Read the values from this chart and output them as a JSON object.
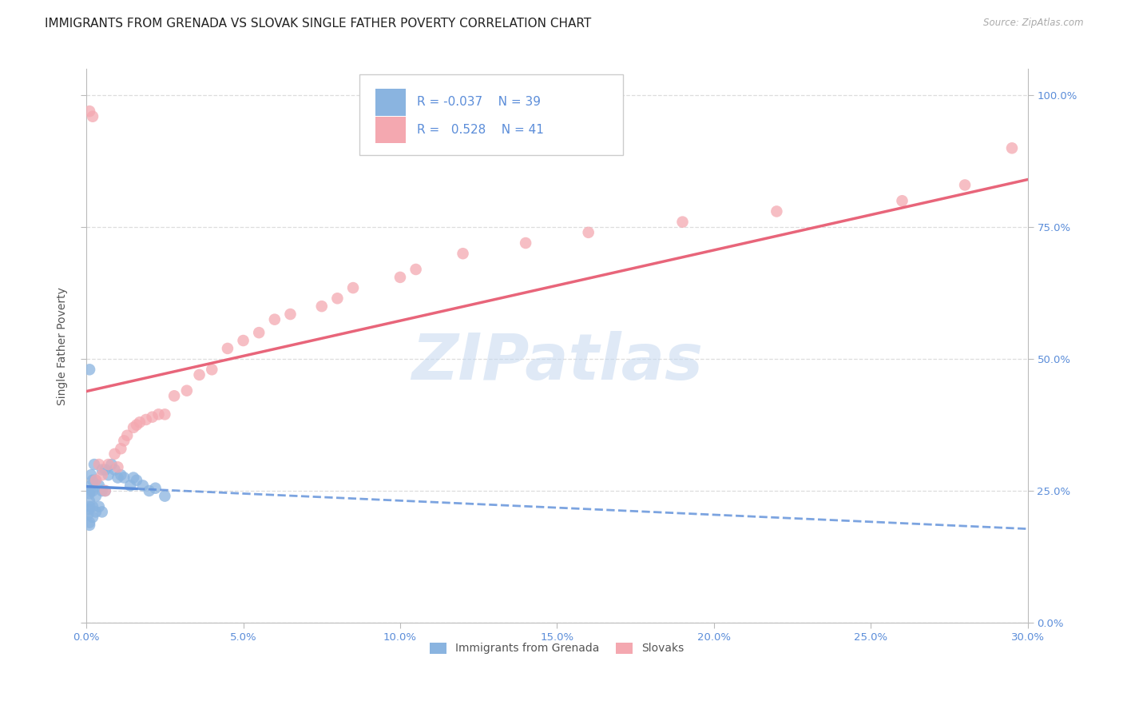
{
  "title": "IMMIGRANTS FROM GRENADA VS SLOVAK SINGLE FATHER POVERTY CORRELATION CHART",
  "source": "Source: ZipAtlas.com",
  "ylabel_label": "Single Father Poverty",
  "x_min": 0.0,
  "x_max": 0.3,
  "y_min": 0.0,
  "y_max": 1.05,
  "grenada_color": "#8ab4e0",
  "slovak_color": "#f4a8b0",
  "grenada_line_color": "#5b8dd9",
  "slovak_line_color": "#e8657a",
  "legend_grenada_label": "Immigrants from Grenada",
  "legend_slovak_label": "Slovaks",
  "R_grenada": -0.037,
  "N_grenada": 39,
  "R_slovak": 0.528,
  "N_slovak": 41,
  "watermark": "ZIPatlas",
  "grenada_x": [
    0.0005,
    0.0008,
    0.001,
    0.001,
    0.001,
    0.0012,
    0.0015,
    0.0015,
    0.002,
    0.002,
    0.002,
    0.002,
    0.0025,
    0.003,
    0.003,
    0.003,
    0.004,
    0.004,
    0.005,
    0.005,
    0.005,
    0.006,
    0.006,
    0.007,
    0.008,
    0.009,
    0.01,
    0.011,
    0.012,
    0.014,
    0.015,
    0.016,
    0.018,
    0.02,
    0.022,
    0.025,
    0.001,
    0.001,
    0.001
  ],
  "grenada_y": [
    0.205,
    0.215,
    0.22,
    0.23,
    0.245,
    0.25,
    0.26,
    0.28,
    0.2,
    0.22,
    0.25,
    0.27,
    0.3,
    0.21,
    0.24,
    0.27,
    0.22,
    0.26,
    0.21,
    0.25,
    0.29,
    0.25,
    0.29,
    0.28,
    0.3,
    0.29,
    0.275,
    0.28,
    0.275,
    0.26,
    0.275,
    0.27,
    0.26,
    0.25,
    0.255,
    0.24,
    0.185,
    0.19,
    0.48
  ],
  "slovak_x": [
    0.001,
    0.002,
    0.003,
    0.004,
    0.005,
    0.006,
    0.007,
    0.009,
    0.01,
    0.011,
    0.012,
    0.013,
    0.015,
    0.016,
    0.017,
    0.019,
    0.021,
    0.023,
    0.025,
    0.028,
    0.032,
    0.036,
    0.04,
    0.045,
    0.05,
    0.055,
    0.06,
    0.065,
    0.075,
    0.08,
    0.085,
    0.1,
    0.105,
    0.12,
    0.14,
    0.16,
    0.19,
    0.22,
    0.26,
    0.28,
    0.295
  ],
  "slovak_y": [
    0.97,
    0.96,
    0.27,
    0.3,
    0.28,
    0.25,
    0.3,
    0.32,
    0.295,
    0.33,
    0.345,
    0.355,
    0.37,
    0.375,
    0.38,
    0.385,
    0.39,
    0.395,
    0.395,
    0.43,
    0.44,
    0.47,
    0.48,
    0.52,
    0.535,
    0.55,
    0.575,
    0.585,
    0.6,
    0.615,
    0.635,
    0.655,
    0.67,
    0.7,
    0.72,
    0.74,
    0.76,
    0.78,
    0.8,
    0.83,
    0.9
  ],
  "grid_color": "#dddddd",
  "bg_color": "#ffffff",
  "title_fontsize": 11,
  "axis_label_fontsize": 10,
  "tick_fontsize": 9.5
}
